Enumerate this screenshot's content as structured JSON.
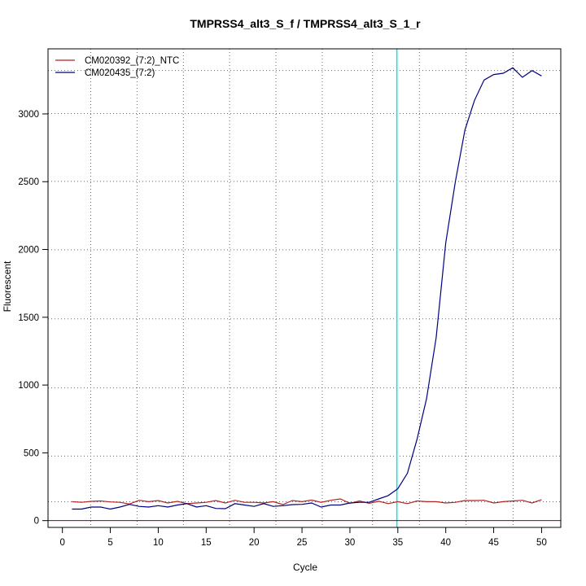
{
  "chart_data": {
    "type": "line",
    "title": "TMPRSS4_alt3_S_f / TMPRSS4_alt3_S_1_r",
    "xlabel": "Cycle",
    "ylabel": "Fluorescent",
    "xlim": [
      -1.5,
      52
    ],
    "ylim": [
      -50,
      3480
    ],
    "xticks": [
      0,
      5,
      10,
      15,
      20,
      25,
      30,
      35,
      40,
      45,
      50
    ],
    "yticks": [
      0,
      500,
      1000,
      1500,
      2000,
      2500,
      3000
    ],
    "vgrid": [
      2.96,
      7.79,
      12.62,
      17.45,
      22.28,
      27.11,
      32.36,
      37.25,
      42.12,
      47.02
    ],
    "hgrid": [
      139,
      476,
      979,
      1488,
      1998,
      2502,
      3003,
      3320
    ],
    "grid": true,
    "legend_position": "top-left",
    "threshold_x": 34.9,
    "threshold_color": "#00e5e5",
    "baseline_y": 0,
    "baseline_color": "#8b0000",
    "x": [
      1,
      2,
      3,
      4,
      5,
      6,
      7,
      8,
      9,
      10,
      11,
      12,
      13,
      14,
      15,
      16,
      17,
      18,
      19,
      20,
      21,
      22,
      23,
      24,
      25,
      26,
      27,
      28,
      29,
      30,
      31,
      32,
      33,
      34,
      35,
      36,
      37,
      38,
      39,
      40,
      41,
      42,
      43,
      44,
      45,
      46,
      47,
      48,
      49,
      50
    ],
    "series": [
      {
        "name": "CM020392_(7:2)_NTC",
        "color": "#b22222",
        "values": [
          140,
          135,
          142,
          145,
          138,
          135,
          122,
          150,
          140,
          148,
          130,
          142,
          125,
          130,
          135,
          148,
          130,
          150,
          135,
          135,
          130,
          140,
          118,
          148,
          140,
          152,
          135,
          150,
          160,
          128,
          145,
          128,
          143,
          125,
          140,
          125,
          145,
          140,
          140,
          130,
          135,
          148,
          148,
          150,
          130,
          140,
          145,
          150,
          130,
          155
        ]
      },
      {
        "name": "CM020435_(7:2)",
        "color": "#000080",
        "values": [
          85,
          85,
          100,
          100,
          85,
          100,
          120,
          105,
          100,
          110,
          100,
          115,
          125,
          100,
          110,
          90,
          88,
          125,
          115,
          105,
          125,
          105,
          110,
          118,
          120,
          130,
          100,
          115,
          115,
          130,
          135,
          135,
          160,
          185,
          235,
          350,
          600,
          900,
          1350,
          2050,
          2500,
          2880,
          3100,
          3250,
          3290,
          3300,
          3340,
          3270,
          3320,
          3280
        ]
      }
    ]
  }
}
